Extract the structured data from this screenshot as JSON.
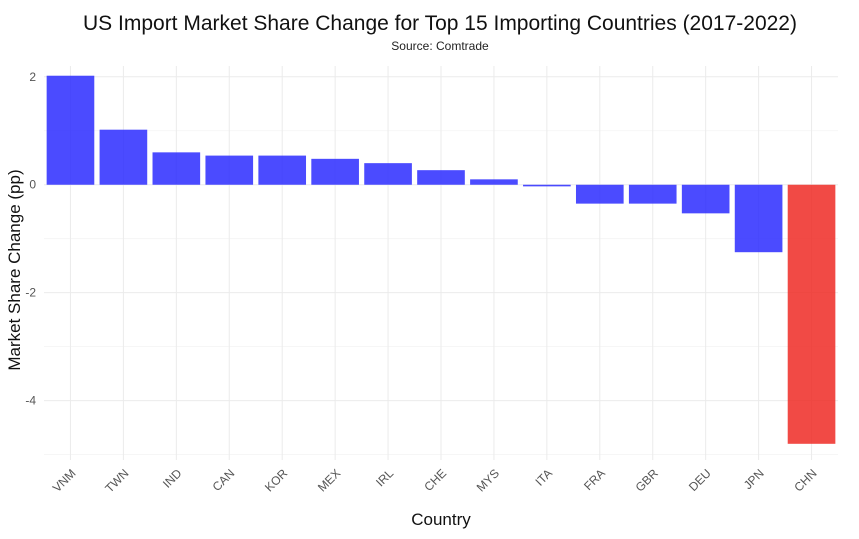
{
  "chart_data": {
    "type": "bar",
    "title": "US Import Market Share Change for Top 15 Importing Countries (2017-2022)",
    "subtitle": "Source: Comtrade",
    "xlabel": "Country",
    "ylabel": "Market Share Change (pp)",
    "categories": [
      "VNM",
      "TWN",
      "IND",
      "CAN",
      "KOR",
      "MEX",
      "IRL",
      "CHE",
      "MYS",
      "ITA",
      "FRA",
      "GBR",
      "DEU",
      "JPN",
      "CHN"
    ],
    "values": [
      2.02,
      1.02,
      0.6,
      0.54,
      0.54,
      0.48,
      0.4,
      0.27,
      0.1,
      -0.03,
      -0.35,
      -0.35,
      -0.53,
      -1.25,
      -4.8
    ],
    "ylim": [
      -5.1,
      2.2
    ],
    "yticks": [
      2,
      0,
      -2,
      -4
    ],
    "ytick_labels": [
      "2",
      "0",
      "-2",
      "-4"
    ],
    "grid": true,
    "colors": {
      "default": "#2b2bff",
      "highlight": "#ee2a24",
      "highlight_category": "CHN"
    }
  }
}
